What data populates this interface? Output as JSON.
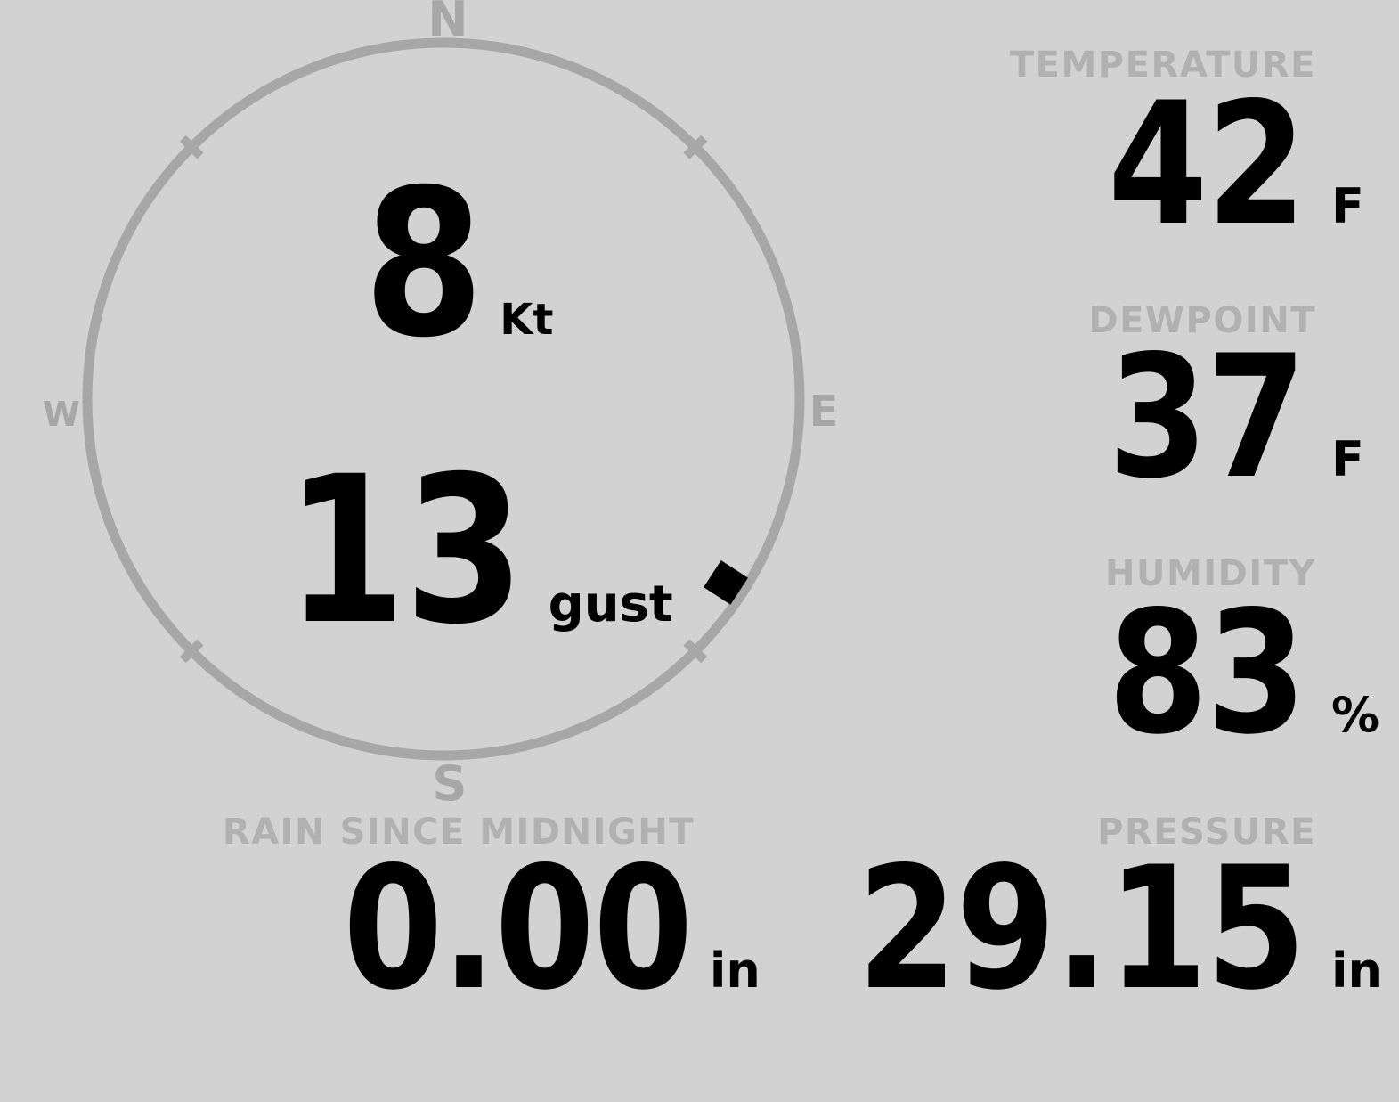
{
  "station_display": {
    "wind": {
      "speed_value": "8",
      "speed_unit": "Kt",
      "gust_value": "13",
      "gust_unit": "gust",
      "compass": {
        "north": "N",
        "east": "E",
        "south": "S",
        "west": "W",
        "direction_deg": 123
      }
    },
    "temperature": {
      "label": "TEMPERATURE",
      "value": "42",
      "unit": "F"
    },
    "dewpoint": {
      "label": "DEWPOINT",
      "value": "37",
      "unit": "F"
    },
    "humidity": {
      "label": "HUMIDITY",
      "value": "83",
      "unit": "%"
    },
    "pressure": {
      "label": "PRESSURE",
      "value": "29.15",
      "unit": "in"
    },
    "rain": {
      "label": "RAIN SINCE MIDNIGHT",
      "value": "0.00",
      "unit": "in"
    },
    "colors": {
      "background": "#d2d2d2",
      "ring_gray": "#a7a7a7",
      "label_gray": "#b1b1b1",
      "value_black": "#000000"
    }
  }
}
